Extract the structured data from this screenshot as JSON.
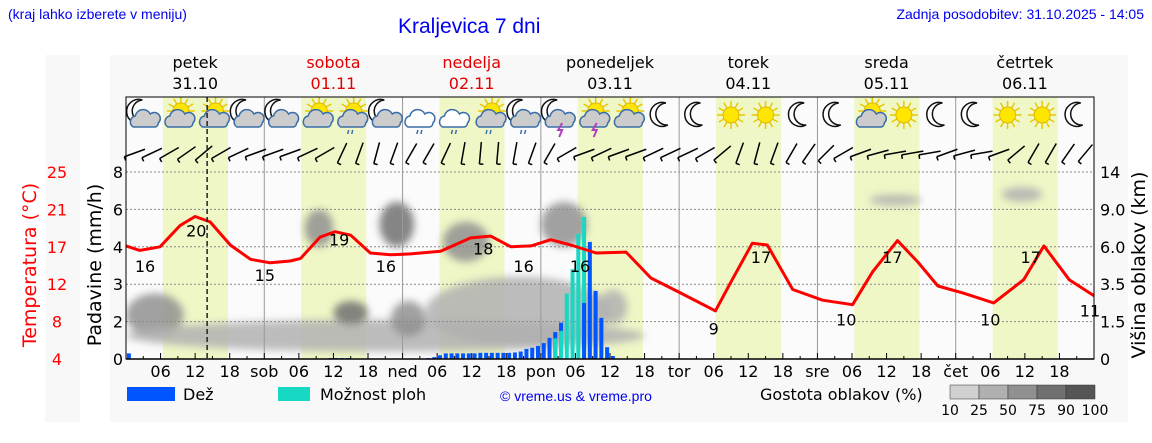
{
  "header": {
    "hint": "(kraj lahko izberete v meniju)",
    "title": "Kraljevica 7 dni",
    "updated": "Zadnja posodobitev: 31.10.2025 - 14:05"
  },
  "days": [
    {
      "name": "petek",
      "date": "31.10",
      "abbr": "",
      "weekend": false
    },
    {
      "name": "sobota",
      "date": "01.11",
      "abbr": "sob",
      "weekend": true
    },
    {
      "name": "nedelja",
      "date": "02.11",
      "abbr": "ned",
      "weekend": true
    },
    {
      "name": "ponedeljek",
      "date": "03.11",
      "abbr": "pon",
      "weekend": false
    },
    {
      "name": "torek",
      "date": "04.11",
      "abbr": "tor",
      "weekend": false
    },
    {
      "name": "sreda",
      "date": "05.11",
      "abbr": "sre",
      "weekend": false
    },
    {
      "name": "četrtek",
      "date": "06.11",
      "abbr": "čet",
      "weekend": false
    }
  ],
  "hour_labels": [
    "06",
    "12",
    "18"
  ],
  "weather_icons": [
    "moon-cloud",
    "sun-cloud",
    "sun-cloud",
    "moon-cloud",
    "moon-cloud",
    "sun-cloud",
    "sun-cloud-drizzle",
    "moon-cloud",
    "cloud-drizzle",
    "cloud-drizzle",
    "sun-cloud-drizzle",
    "moon-cloud-drizzle",
    "moon-cloud-thunder",
    "sun-cloud-thunder",
    "sun-cloud",
    "moon",
    "moon",
    "sun",
    "sun",
    "moon",
    "moon",
    "sun-cloud",
    "sun",
    "moon",
    "moon",
    "sun",
    "sun",
    "moon"
  ],
  "wind_barb_angles_deg": [
    20,
    25,
    30,
    35,
    40,
    30,
    25,
    20,
    20,
    20,
    25,
    30,
    65,
    70,
    75,
    70,
    60,
    60,
    65,
    80,
    85,
    85,
    80,
    70,
    60,
    30,
    20,
    25,
    20,
    20,
    25,
    25,
    25,
    30,
    40,
    70,
    75,
    70,
    60,
    55,
    45,
    30,
    20,
    15,
    10,
    10,
    10,
    20,
    15,
    10,
    20,
    40,
    60,
    60,
    55,
    50
  ],
  "colors": {
    "temperature": "#ff0000",
    "rain": "#0055ff",
    "showers": "#16d8c4",
    "daylight": "#eff7c6",
    "title": "#0000ee",
    "weekend": "#e00000"
  },
  "chart_data": {
    "type": "line",
    "title": "Kraljevica 7 dni",
    "x_unit": "hours since Fri 31.10 00:00",
    "xlim": [
      0,
      168
    ],
    "now_hour": 14.08,
    "daylight_hours": [
      6.4,
      17.7
    ],
    "axes": {
      "temperature": {
        "label": "Temperatura (°C)",
        "ticks": [
          4,
          8,
          12,
          17,
          21,
          25
        ]
      },
      "precipitation": {
        "label": "Padavine (mm/h)",
        "ticks": [
          0,
          2,
          3,
          4,
          6,
          8
        ]
      },
      "cloud_height": {
        "label": "Višina oblakov (km)",
        "ticks": [
          0,
          1.5,
          3.5,
          6.0,
          9.0,
          14
        ]
      }
    },
    "tick_text": {
      "precipitation": [
        "0",
        "2",
        "3",
        "4",
        "6",
        "8"
      ],
      "cloud_height": [
        "0",
        "1.5",
        "3.5",
        "6.0",
        "9.0",
        "14"
      ]
    },
    "temperature": [
      [
        0,
        16.7
      ],
      [
        2.4,
        16.2
      ],
      [
        5.9,
        16.6
      ],
      [
        9.4,
        19.0
      ],
      [
        12,
        20.0
      ],
      [
        14.6,
        19.4
      ],
      [
        18.1,
        16.8
      ],
      [
        21.6,
        15.2
      ],
      [
        25,
        14.8
      ],
      [
        28.5,
        15.0
      ],
      [
        30.3,
        15.3
      ],
      [
        33.7,
        17.7
      ],
      [
        36.3,
        18.3
      ],
      [
        39,
        17.9
      ],
      [
        42.4,
        15.9
      ],
      [
        45.9,
        15.7
      ],
      [
        49.4,
        15.8
      ],
      [
        54.6,
        16.1
      ],
      [
        59.8,
        17.6
      ],
      [
        63.3,
        17.8
      ],
      [
        66.8,
        16.6
      ],
      [
        70.3,
        16.7
      ],
      [
        73.7,
        17.4
      ],
      [
        77.2,
        16.8
      ],
      [
        81.6,
        15.9
      ],
      [
        86.8,
        16.0
      ],
      [
        91.1,
        13.1
      ],
      [
        96.3,
        11.4
      ],
      [
        102.3,
        9.4
      ],
      [
        105.2,
        12.9
      ],
      [
        108.7,
        17.0
      ],
      [
        111.3,
        16.8
      ],
      [
        115.7,
        11.8
      ],
      [
        120.9,
        10.6
      ],
      [
        126.1,
        10.1
      ],
      [
        129.6,
        13.8
      ],
      [
        133.9,
        17.3
      ],
      [
        137.4,
        14.9
      ],
      [
        140.9,
        12.2
      ],
      [
        145.3,
        11.4
      ],
      [
        150.6,
        10.3
      ],
      [
        155.8,
        12.9
      ],
      [
        159.3,
        16.7
      ],
      [
        163.7,
        12.9
      ],
      [
        168,
        11.1
      ]
    ],
    "temperature_labels": [
      [
        3.3,
        "16"
      ],
      [
        12.2,
        "20"
      ],
      [
        24.1,
        "15"
      ],
      [
        37,
        "19"
      ],
      [
        45.1,
        "16"
      ],
      [
        62,
        "18"
      ],
      [
        69,
        "16"
      ],
      [
        78.8,
        "16"
      ],
      [
        102,
        "9"
      ],
      [
        110.2,
        "17"
      ],
      [
        125,
        "10"
      ],
      [
        133,
        "17"
      ],
      [
        150,
        "10"
      ],
      [
        157,
        "17"
      ],
      [
        167.3,
        "11"
      ]
    ],
    "precipitation": {
      "columns": [
        "hour",
        "rain_mm_h",
        "showers_mm_h"
      ],
      "rows": [
        [
          0,
          0.3,
          0
        ],
        [
          35,
          0.05,
          0
        ],
        [
          36,
          0.05,
          0
        ],
        [
          37,
          0.05,
          0
        ],
        [
          38,
          0.05,
          0
        ],
        [
          52,
          0.05,
          0
        ],
        [
          53,
          0.1,
          0
        ],
        [
          54,
          0.2,
          0
        ],
        [
          55,
          0.3,
          0
        ],
        [
          56,
          0.3,
          0
        ],
        [
          57,
          0.3,
          0
        ],
        [
          58,
          0.3,
          0
        ],
        [
          59,
          0.3,
          0
        ],
        [
          60,
          0.3,
          0
        ],
        [
          61,
          0.33,
          0
        ],
        [
          62,
          0.33,
          0
        ],
        [
          63,
          0.33,
          0
        ],
        [
          64,
          0.33,
          0
        ],
        [
          65,
          0.33,
          0
        ],
        [
          66,
          0.33,
          0
        ],
        [
          67,
          0.35,
          0
        ],
        [
          68,
          0.4,
          0
        ],
        [
          69,
          0.54,
          0
        ],
        [
          70,
          0.6,
          0
        ],
        [
          71,
          0.7,
          0
        ],
        [
          72,
          0.85,
          0
        ],
        [
          73,
          1.13,
          0
        ],
        [
          74,
          1.44,
          1.1
        ],
        [
          75,
          1.94,
          1.5
        ],
        [
          76,
          0,
          2.75
        ],
        [
          77,
          0,
          3.4
        ],
        [
          78,
          0,
          4.7
        ],
        [
          79,
          2.5,
          5.6
        ],
        [
          80,
          4.26,
          0
        ],
        [
          81,
          2.82,
          0
        ],
        [
          82,
          2.1,
          0
        ],
        [
          83,
          0.63,
          0
        ],
        [
          84,
          0.16,
          0
        ]
      ]
    },
    "cloud_density": {
      "columns": [
        "hour_start",
        "hour_end",
        "km_low",
        "km_high",
        "density_pct"
      ],
      "rows": [
        [
          0,
          10,
          0.9,
          3.0,
          60
        ],
        [
          0,
          90,
          0.3,
          1.6,
          35
        ],
        [
          36,
          42,
          1.4,
          2.6,
          75
        ],
        [
          46,
          52,
          0.9,
          2.6,
          70
        ],
        [
          52,
          84,
          0.5,
          4.0,
          45
        ],
        [
          31,
          36,
          6.0,
          9.0,
          70
        ],
        [
          44,
          50,
          6.0,
          10.0,
          80
        ],
        [
          55,
          63,
          5.0,
          8.0,
          50
        ],
        [
          72,
          80,
          6.0,
          10.0,
          70
        ],
        [
          82,
          87,
          1.4,
          3.2,
          45
        ],
        [
          129,
          138,
          9.5,
          11.0,
          30
        ],
        [
          152,
          159,
          10.0,
          12.0,
          25
        ]
      ]
    },
    "legend": {
      "rain": "Dež",
      "showers": "Možnost ploh",
      "credit": "© vreme.us & vreme.pro",
      "cloud_density": "Gostota oblakov (%)",
      "cloud_density_steps": [
        "10",
        "25",
        "50",
        "75",
        "90",
        "100"
      ]
    }
  }
}
